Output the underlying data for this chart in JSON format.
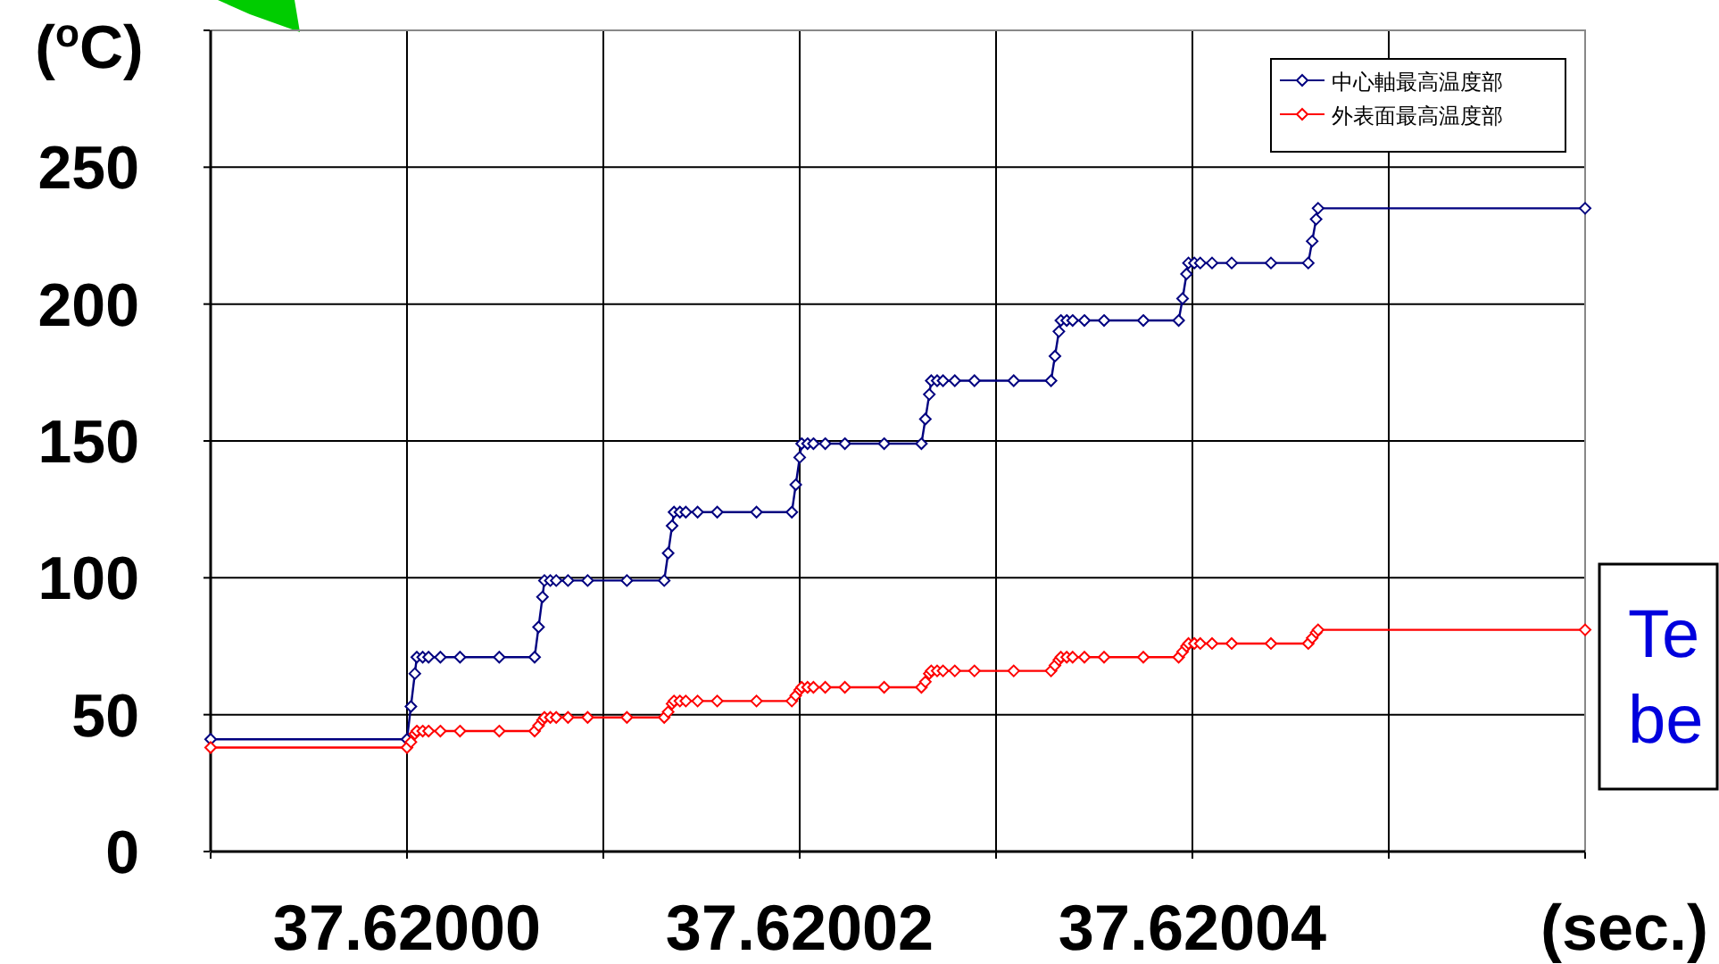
{
  "chart_data": {
    "type": "line",
    "ylabel": "($^{o}$C)",
    "xlabel": "(sec.)",
    "annotations": [
      "Te\nbe"
    ],
    "x": [
      37.61999,
      37.62,
      37.6200002,
      37.6200004,
      37.6200005,
      37.6200008,
      37.6200011,
      37.6200017,
      37.6200027,
      37.6200047,
      37.6200065,
      37.6200067,
      37.6200069,
      37.620007,
      37.6200073,
      37.6200076,
      37.6200082,
      37.6200092,
      37.6200112,
      37.6200131,
      37.6200133,
      37.6200135,
      37.6200136,
      37.6200139,
      37.6200142,
      37.6200148,
      37.6200158,
      37.6200178,
      37.6200196,
      37.6200198,
      37.62002,
      37.6200201,
      37.6200204,
      37.6200207,
      37.6200213,
      37.6200223,
      37.6200243,
      37.6200262,
      37.6200264,
      37.6200266,
      37.6200267,
      37.620027,
      37.6200273,
      37.6200279,
      37.6200289,
      37.6200309,
      37.6200328,
      37.620033,
      37.6200332,
      37.6200333,
      37.6200336,
      37.6200339,
      37.6200345,
      37.6200355,
      37.6200375,
      37.6200393,
      37.6200395,
      37.6200397,
      37.6200398,
      37.6200401,
      37.6200404,
      37.620041,
      37.620042,
      37.620044,
      37.6200459,
      37.6200461,
      37.6200463,
      37.6200464,
      37.62006
    ],
    "series": [
      {
        "name": "中心軸最高温度部",
        "color": "#000080",
        "values": [
          41,
          41,
          53,
          65,
          71,
          71,
          71,
          71,
          71,
          71,
          71,
          82,
          93,
          99,
          99,
          99,
          99,
          99,
          99,
          99,
          109,
          119,
          124,
          124,
          124,
          124,
          124,
          124,
          124,
          134,
          144,
          149,
          149,
          149,
          149,
          149,
          149,
          149,
          158,
          167,
          172,
          172,
          172,
          172,
          172,
          172,
          172,
          181,
          190,
          194,
          194,
          194,
          194,
          194,
          194,
          194,
          202,
          211,
          215,
          215,
          215,
          215,
          215,
          215,
          215,
          223,
          231,
          235,
          235
        ]
      },
      {
        "name": "外表面最高温度部",
        "color": "#ff0000",
        "values": [
          38,
          38,
          40,
          43,
          44,
          44,
          44,
          44,
          44,
          44,
          44,
          46,
          48,
          49,
          49,
          49,
          49,
          49,
          49,
          49,
          51,
          54,
          55,
          55,
          55,
          55,
          55,
          55,
          55,
          57,
          59,
          60,
          60,
          60,
          60,
          60,
          60,
          60,
          62,
          65,
          66,
          66,
          66,
          66,
          66,
          66,
          66,
          68,
          70,
          71,
          71,
          71,
          71,
          71,
          71,
          71,
          73,
          75,
          76,
          76,
          76,
          76,
          76,
          76,
          76,
          78,
          80,
          81,
          81
        ]
      }
    ],
    "xlim": [
      37.61999,
      37.62006
    ],
    "xticks": [
      {
        "value": 37.61999,
        "label": null
      },
      {
        "value": 37.62,
        "label": "37.62000"
      },
      {
        "value": 37.62001,
        "label": null
      },
      {
        "value": 37.62002,
        "label": "37.62002"
      },
      {
        "value": 37.62003,
        "label": null
      },
      {
        "value": 37.62004,
        "label": "37.62004"
      },
      {
        "value": 37.62005,
        "label": null
      },
      {
        "value": 37.62006,
        "label": null
      }
    ],
    "ylim": [
      0,
      300
    ],
    "yticks": [
      0,
      50,
      100,
      150,
      200,
      250,
      {
        "value": 300,
        "label": null
      }
    ],
    "grid": true,
    "legend": "top right",
    "marker": "diamond",
    "line_style": "solid"
  }
}
